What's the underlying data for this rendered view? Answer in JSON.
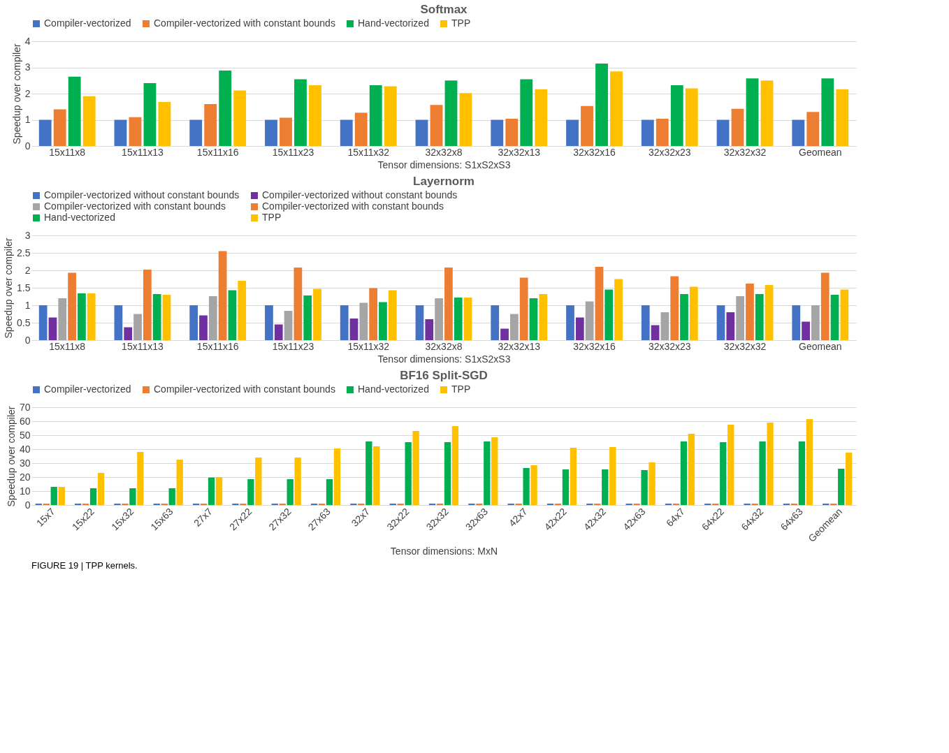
{
  "chart_data": [
    {
      "type": "bar",
      "title": "Softmax",
      "xlabel": "Tensor dimensions: S1xS2xS3",
      "ylabel": "Speedup over compiler",
      "categories": [
        "15x11x8",
        "15x11x13",
        "15x11x16",
        "15x11x23",
        "15x11x32",
        "32x32x8",
        "32x32x13",
        "32x32x16",
        "32x32x23",
        "32x32x32",
        "Geomean"
      ],
      "ylim": [
        0,
        4
      ],
      "yticks": [
        0,
        1,
        2,
        3,
        4
      ],
      "grid": "y",
      "legend": "top",
      "series": [
        {
          "name": "Compiler-vectorized",
          "color": "#4472c4",
          "values": [
            1,
            1,
            1,
            1,
            1,
            1,
            1,
            1,
            1,
            1,
            1
          ]
        },
        {
          "name": "Compiler-vectorized with constant bounds",
          "color": "#ed7d31",
          "values": [
            1.4,
            1.1,
            1.6,
            1.08,
            1.27,
            1.57,
            1.04,
            1.53,
            1.04,
            1.42,
            1.3
          ]
        },
        {
          "name": "Hand-vectorized",
          "color": "#00b050",
          "values": [
            2.65,
            2.4,
            2.88,
            2.55,
            2.32,
            2.5,
            2.55,
            3.15,
            2.32,
            2.58,
            2.58
          ]
        },
        {
          "name": "TPP",
          "color": "#ffc000",
          "values": [
            1.9,
            1.68,
            2.12,
            2.32,
            2.28,
            2.02,
            2.17,
            2.85,
            2.2,
            2.5,
            2.17
          ]
        }
      ]
    },
    {
      "type": "bar",
      "title": "Layernorm",
      "xlabel": "Tensor dimensions: S1xS2xS3",
      "ylabel": "Speedup over compiler",
      "categories": [
        "15x11x8",
        "15x11x13",
        "15x11x16",
        "15x11x23",
        "15x11x32",
        "32x32x8",
        "32x32x13",
        "32x32x16",
        "32x32x23",
        "32x32x32",
        "Geomean"
      ],
      "ylim": [
        0,
        3
      ],
      "yticks": [
        0,
        0.5,
        1,
        1.5,
        2,
        2.5,
        3
      ],
      "grid": "y",
      "legend": "top",
      "series": [
        {
          "name": "Compiler-vectorized without constant bounds",
          "color": "#4472c4",
          "values": [
            1,
            1,
            1,
            1,
            1,
            1,
            1,
            1,
            1,
            1,
            1
          ]
        },
        {
          "name": "Compiler-vectorized without constant bounds",
          "color": "#7030a0",
          "values": [
            0.65,
            0.37,
            0.71,
            0.45,
            0.62,
            0.6,
            0.33,
            0.65,
            0.43,
            0.8,
            0.53
          ]
        },
        {
          "name": "Compiler-vectorized with constant bounds",
          "color": "#a5a5a5",
          "values": [
            1.2,
            0.75,
            1.26,
            0.84,
            1.07,
            1.2,
            0.75,
            1.11,
            0.8,
            1.26,
            1.0
          ]
        },
        {
          "name": "Compiler-vectorized with constant bounds",
          "color": "#ed7d31",
          "values": [
            1.93,
            2.02,
            2.55,
            2.08,
            1.49,
            2.08,
            1.79,
            2.1,
            1.83,
            1.62,
            1.93
          ]
        },
        {
          "name": "Hand-vectorized",
          "color": "#00b050",
          "values": [
            1.34,
            1.32,
            1.43,
            1.28,
            1.09,
            1.22,
            1.2,
            1.45,
            1.32,
            1.32,
            1.3
          ]
        },
        {
          "name": "TPP",
          "color": "#ffc000",
          "values": [
            1.34,
            1.3,
            1.7,
            1.47,
            1.43,
            1.22,
            1.32,
            1.75,
            1.53,
            1.58,
            1.45
          ]
        }
      ]
    },
    {
      "type": "bar",
      "title": "BF16 Split-SGD",
      "xlabel": "Tensor dimensions: MxN",
      "ylabel": "Speedup over compiler",
      "categories": [
        "15x7",
        "15x22",
        "15x32",
        "15x63",
        "27x7",
        "27x22",
        "27x32",
        "27x63",
        "32x7",
        "32x22",
        "32x32",
        "32x63",
        "42x7",
        "42x22",
        "42x32",
        "42x63",
        "64x7",
        "64x22",
        "64x32",
        "64x63",
        "Geomean"
      ],
      "ylim": [
        0,
        70
      ],
      "yticks": [
        0,
        10,
        20,
        30,
        40,
        50,
        60,
        70
      ],
      "grid": "y",
      "legend": "top",
      "annotations": [
        "FIGURE 19 | TPP kernels."
      ],
      "series": [
        {
          "name": "Compiler-vectorized",
          "color": "#4472c4",
          "values": [
            1,
            1,
            1,
            1,
            1,
            1,
            1,
            1,
            1,
            1,
            1,
            1,
            1,
            1,
            1,
            1,
            1,
            1,
            1,
            1,
            1
          ]
        },
        {
          "name": "Compiler-vectorized with constant bounds",
          "color": "#ed7d31",
          "values": [
            1,
            1,
            1,
            1,
            1,
            1,
            1,
            1,
            1,
            1,
            1,
            1,
            1,
            1,
            1,
            1,
            1,
            1,
            1,
            1,
            1
          ]
        },
        {
          "name": "Hand-vectorized",
          "color": "#00b050",
          "values": [
            13,
            12,
            12,
            12,
            19.7,
            18.5,
            18.5,
            18.5,
            45.5,
            45,
            45,
            45.5,
            26.5,
            25.5,
            25.5,
            25,
            45.5,
            45,
            45.5,
            45.5,
            26
          ]
        },
        {
          "name": "TPP",
          "color": "#ffc000",
          "values": [
            13,
            23,
            38,
            32.5,
            20,
            34,
            34,
            40.5,
            42,
            53,
            56.5,
            48.5,
            28.5,
            41,
            41.5,
            30.5,
            51,
            57.5,
            59,
            61.5,
            37.5
          ]
        }
      ]
    }
  ]
}
